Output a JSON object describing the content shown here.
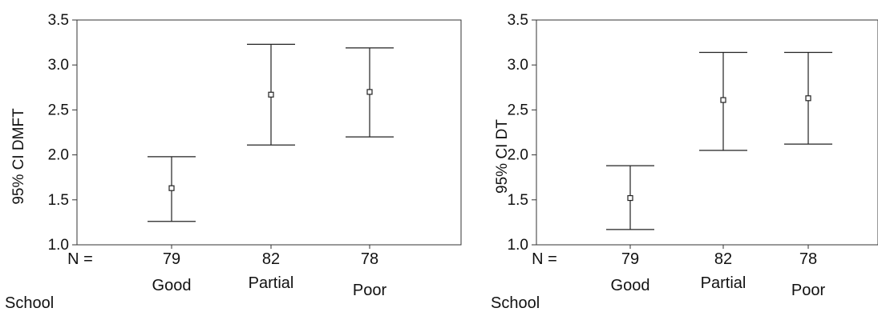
{
  "chart_data": [
    {
      "type": "errorbar",
      "ylabel": "95% CI DMFT",
      "ylim": [
        1.0,
        3.5
      ],
      "yticks": [
        "1.0",
        "1.5",
        "2.0",
        "2.5",
        "3.0",
        "3.5"
      ],
      "n_label": "N =",
      "group_label": "School",
      "categories": [
        "Good",
        "Partial",
        "Poor"
      ],
      "n": [
        "79",
        "82",
        "78"
      ],
      "mean": [
        1.63,
        2.67,
        2.7
      ],
      "lower": [
        1.26,
        2.11,
        2.2
      ],
      "upper": [
        1.98,
        3.23,
        3.19
      ],
      "grid": false
    },
    {
      "type": "errorbar",
      "ylabel": "95% CI DT",
      "ylim": [
        1.0,
        3.5
      ],
      "yticks": [
        "1.0",
        "1.5",
        "2.0",
        "2.5",
        "3.0",
        "3.5"
      ],
      "n_label": "N =",
      "group_label": "School",
      "categories": [
        "Good",
        "Partial",
        "Poor"
      ],
      "n": [
        "79",
        "82",
        "78"
      ],
      "mean": [
        1.52,
        2.61,
        2.63
      ],
      "lower": [
        1.17,
        2.05,
        2.12
      ],
      "upper": [
        1.88,
        3.14,
        3.14
      ],
      "grid": false
    }
  ]
}
